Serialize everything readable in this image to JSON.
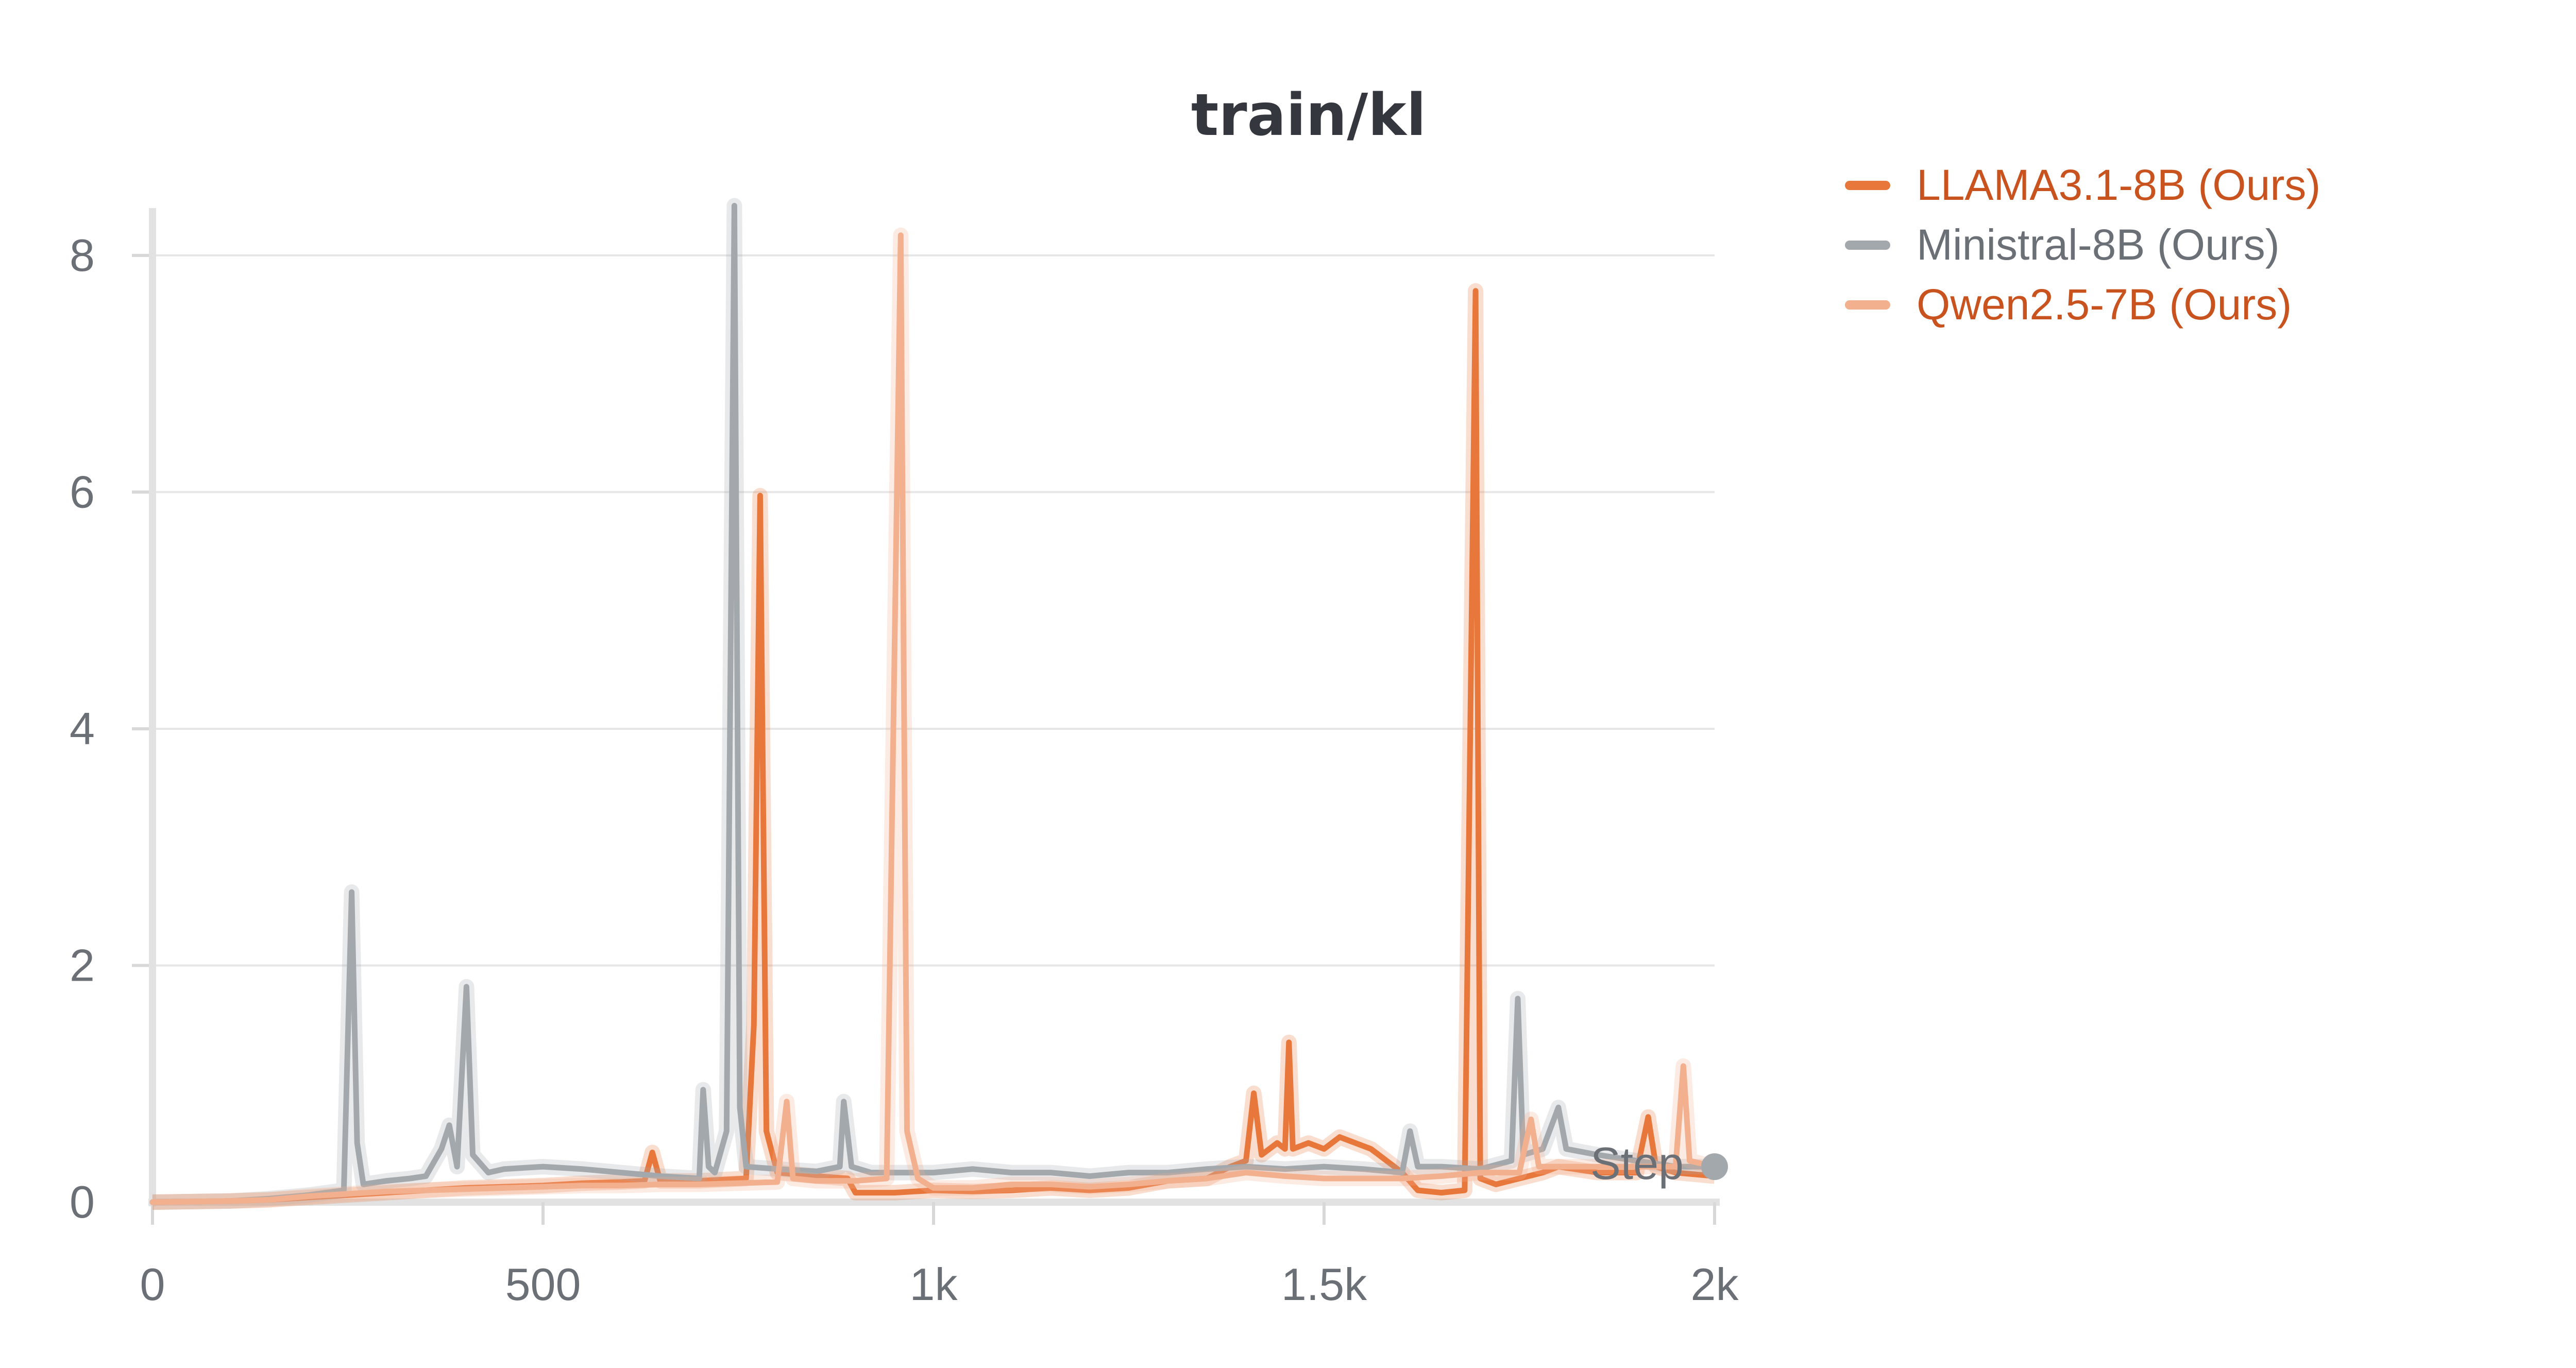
{
  "chart_data": {
    "type": "line",
    "title": "train/kl",
    "xlabel": "Step",
    "ylabel": "",
    "xlim": [
      0,
      2000
    ],
    "ylim": [
      0,
      8.4
    ],
    "x_ticks": [
      {
        "value": 0,
        "label": "0"
      },
      {
        "value": 500,
        "label": "500"
      },
      {
        "value": 1000,
        "label": "1k"
      },
      {
        "value": 1500,
        "label": "1.5k"
      },
      {
        "value": 2000,
        "label": "2k"
      }
    ],
    "y_ticks": [
      {
        "value": 0,
        "label": "0"
      },
      {
        "value": 2,
        "label": "2"
      },
      {
        "value": 4,
        "label": "4"
      },
      {
        "value": 6,
        "label": "6"
      },
      {
        "value": 8,
        "label": "8"
      }
    ],
    "grid": true,
    "legend_position": "top-right",
    "series": [
      {
        "name": "LLAMA3.1-8B (Ours)",
        "color": "#e8773c",
        "text_color": "#c9531f",
        "points": [
          [
            0,
            0
          ],
          [
            100,
            0.01
          ],
          [
            150,
            0.02
          ],
          [
            200,
            0.04
          ],
          [
            250,
            0.06
          ],
          [
            300,
            0.08
          ],
          [
            350,
            0.1
          ],
          [
            400,
            0.12
          ],
          [
            450,
            0.13
          ],
          [
            500,
            0.14
          ],
          [
            550,
            0.16
          ],
          [
            600,
            0.17
          ],
          [
            630,
            0.18
          ],
          [
            640,
            0.42
          ],
          [
            650,
            0.18
          ],
          [
            700,
            0.18
          ],
          [
            760,
            0.2
          ],
          [
            770,
            1.5
          ],
          [
            778,
            5.97
          ],
          [
            786,
            0.6
          ],
          [
            800,
            0.25
          ],
          [
            850,
            0.22
          ],
          [
            890,
            0.2
          ],
          [
            900,
            0.08
          ],
          [
            950,
            0.08
          ],
          [
            1000,
            0.1
          ],
          [
            1050,
            0.09
          ],
          [
            1100,
            0.1
          ],
          [
            1150,
            0.12
          ],
          [
            1200,
            0.1
          ],
          [
            1250,
            0.12
          ],
          [
            1300,
            0.18
          ],
          [
            1350,
            0.2
          ],
          [
            1380,
            0.3
          ],
          [
            1400,
            0.35
          ],
          [
            1410,
            0.92
          ],
          [
            1420,
            0.4
          ],
          [
            1440,
            0.5
          ],
          [
            1450,
            0.45
          ],
          [
            1455,
            1.35
          ],
          [
            1460,
            0.45
          ],
          [
            1480,
            0.5
          ],
          [
            1500,
            0.45
          ],
          [
            1520,
            0.55
          ],
          [
            1540,
            0.5
          ],
          [
            1560,
            0.45
          ],
          [
            1580,
            0.35
          ],
          [
            1600,
            0.25
          ],
          [
            1620,
            0.1
          ],
          [
            1650,
            0.08
          ],
          [
            1680,
            0.1
          ],
          [
            1694,
            7.7
          ],
          [
            1700,
            0.2
          ],
          [
            1720,
            0.15
          ],
          [
            1750,
            0.2
          ],
          [
            1780,
            0.25
          ],
          [
            1800,
            0.3
          ],
          [
            1850,
            0.25
          ],
          [
            1900,
            0.25
          ],
          [
            1915,
            0.72
          ],
          [
            1925,
            0.3
          ],
          [
            1950,
            0.25
          ],
          [
            2000,
            0.22
          ]
        ]
      },
      {
        "name": "Ministral-8B (Ours)",
        "color": "#a3a8ad",
        "text_color": "#6b6f76",
        "points": [
          [
            0,
            0
          ],
          [
            100,
            0.01
          ],
          [
            150,
            0.03
          ],
          [
            200,
            0.06
          ],
          [
            245,
            0.1
          ],
          [
            255,
            2.62
          ],
          [
            262,
            0.5
          ],
          [
            270,
            0.15
          ],
          [
            300,
            0.18
          ],
          [
            330,
            0.2
          ],
          [
            350,
            0.22
          ],
          [
            370,
            0.45
          ],
          [
            380,
            0.65
          ],
          [
            390,
            0.3
          ],
          [
            402,
            1.82
          ],
          [
            410,
            0.4
          ],
          [
            430,
            0.25
          ],
          [
            450,
            0.28
          ],
          [
            500,
            0.3
          ],
          [
            550,
            0.28
          ],
          [
            600,
            0.25
          ],
          [
            650,
            0.22
          ],
          [
            700,
            0.2
          ],
          [
            705,
            0.95
          ],
          [
            712,
            0.3
          ],
          [
            720,
            0.25
          ],
          [
            735,
            0.6
          ],
          [
            745,
            8.42
          ],
          [
            752,
            0.8
          ],
          [
            760,
            0.3
          ],
          [
            800,
            0.28
          ],
          [
            850,
            0.26
          ],
          [
            880,
            0.3
          ],
          [
            885,
            0.85
          ],
          [
            895,
            0.3
          ],
          [
            920,
            0.25
          ],
          [
            950,
            0.25
          ],
          [
            1000,
            0.25
          ],
          [
            1050,
            0.28
          ],
          [
            1100,
            0.25
          ],
          [
            1150,
            0.25
          ],
          [
            1200,
            0.22
          ],
          [
            1250,
            0.25
          ],
          [
            1300,
            0.25
          ],
          [
            1350,
            0.28
          ],
          [
            1400,
            0.3
          ],
          [
            1450,
            0.28
          ],
          [
            1500,
            0.3
          ],
          [
            1550,
            0.28
          ],
          [
            1600,
            0.25
          ],
          [
            1610,
            0.6
          ],
          [
            1620,
            0.3
          ],
          [
            1650,
            0.3
          ],
          [
            1700,
            0.28
          ],
          [
            1740,
            0.35
          ],
          [
            1748,
            1.72
          ],
          [
            1755,
            0.4
          ],
          [
            1780,
            0.45
          ],
          [
            1800,
            0.8
          ],
          [
            1810,
            0.45
          ],
          [
            1850,
            0.4
          ],
          [
            1900,
            0.35
          ],
          [
            1950,
            0.3
          ],
          [
            2000,
            0.3
          ]
        ]
      },
      {
        "name": "Qwen2.5-7B (Ours)",
        "color": "#f2b08f",
        "text_color": "#c9531f",
        "points": [
          [
            0,
            0
          ],
          [
            100,
            0.01
          ],
          [
            150,
            0.02
          ],
          [
            200,
            0.05
          ],
          [
            250,
            0.07
          ],
          [
            300,
            0.09
          ],
          [
            350,
            0.1
          ],
          [
            400,
            0.11
          ],
          [
            450,
            0.12
          ],
          [
            500,
            0.13
          ],
          [
            550,
            0.14
          ],
          [
            600,
            0.14
          ],
          [
            650,
            0.15
          ],
          [
            700,
            0.15
          ],
          [
            750,
            0.16
          ],
          [
            800,
            0.17
          ],
          [
            812,
            0.85
          ],
          [
            820,
            0.2
          ],
          [
            850,
            0.18
          ],
          [
            900,
            0.18
          ],
          [
            940,
            0.2
          ],
          [
            958,
            8.17
          ],
          [
            966,
            0.6
          ],
          [
            980,
            0.2
          ],
          [
            1000,
            0.12
          ],
          [
            1050,
            0.12
          ],
          [
            1100,
            0.15
          ],
          [
            1150,
            0.15
          ],
          [
            1200,
            0.13
          ],
          [
            1250,
            0.15
          ],
          [
            1300,
            0.18
          ],
          [
            1350,
            0.2
          ],
          [
            1400,
            0.25
          ],
          [
            1450,
            0.22
          ],
          [
            1500,
            0.2
          ],
          [
            1550,
            0.2
          ],
          [
            1600,
            0.2
          ],
          [
            1650,
            0.22
          ],
          [
            1700,
            0.25
          ],
          [
            1750,
            0.25
          ],
          [
            1765,
            0.7
          ],
          [
            1775,
            0.3
          ],
          [
            1800,
            0.3
          ],
          [
            1850,
            0.3
          ],
          [
            1900,
            0.3
          ],
          [
            1950,
            0.3
          ],
          [
            1960,
            1.15
          ],
          [
            1968,
            0.35
          ],
          [
            2000,
            0.3
          ]
        ]
      }
    ]
  }
}
